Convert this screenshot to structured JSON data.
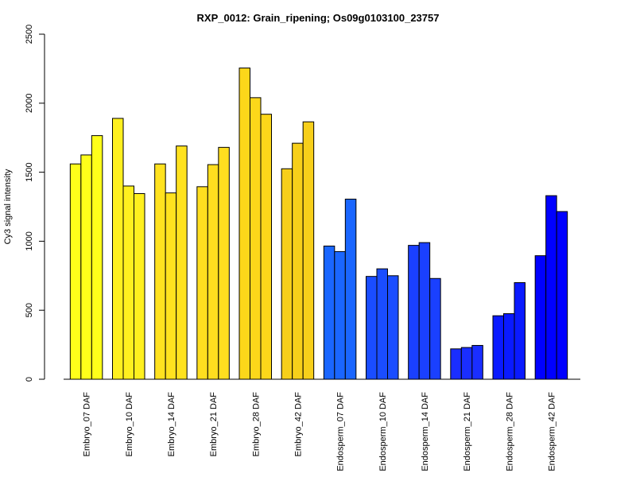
{
  "chart_data": {
    "type": "bar",
    "title": "RXP_0012: Grain_ripening; Os09g0103100_23757",
    "xlabel": "",
    "ylabel": "Cy3 signal intensity",
    "ylim": [
      0,
      2500
    ],
    "yticks": [
      0,
      500,
      1000,
      1500,
      2000,
      2500
    ],
    "grid": false,
    "legend": "none",
    "categories": [
      "Embryo_07 DAF",
      "Embryo_10 DAF",
      "Embryo_14 DAF",
      "Embryo_21 DAF",
      "Embryo_28 DAF",
      "Embryo_42 DAF",
      "Endosperm_07 DAF",
      "Endosperm_10 DAF",
      "Endosperm_14 DAF",
      "Endosperm_21 DAF",
      "Endosperm_28 DAF",
      "Endosperm_42 DAF"
    ],
    "values": [
      [
        1560,
        1625,
        1765
      ],
      [
        1890,
        1400,
        1345
      ],
      [
        1560,
        1350,
        1690
      ],
      [
        1395,
        1555,
        1680
      ],
      [
        2255,
        2040,
        1920
      ],
      [
        1525,
        1710,
        1865
      ],
      [
        965,
        925,
        1305
      ],
      [
        745,
        800,
        750
      ],
      [
        970,
        990,
        730
      ],
      [
        220,
        230,
        245
      ],
      [
        460,
        475,
        700
      ],
      [
        895,
        1330,
        1215
      ]
    ],
    "group_colors": [
      "#ffff1a",
      "#fff01f",
      "#ffe21f",
      "#ffde1f",
      "#fcd71a",
      "#f7cf1a",
      "#1a66ff",
      "#1a4dff",
      "#1a40ff",
      "#1a2eff",
      "#0a1aff",
      "#0000ff"
    ]
  }
}
